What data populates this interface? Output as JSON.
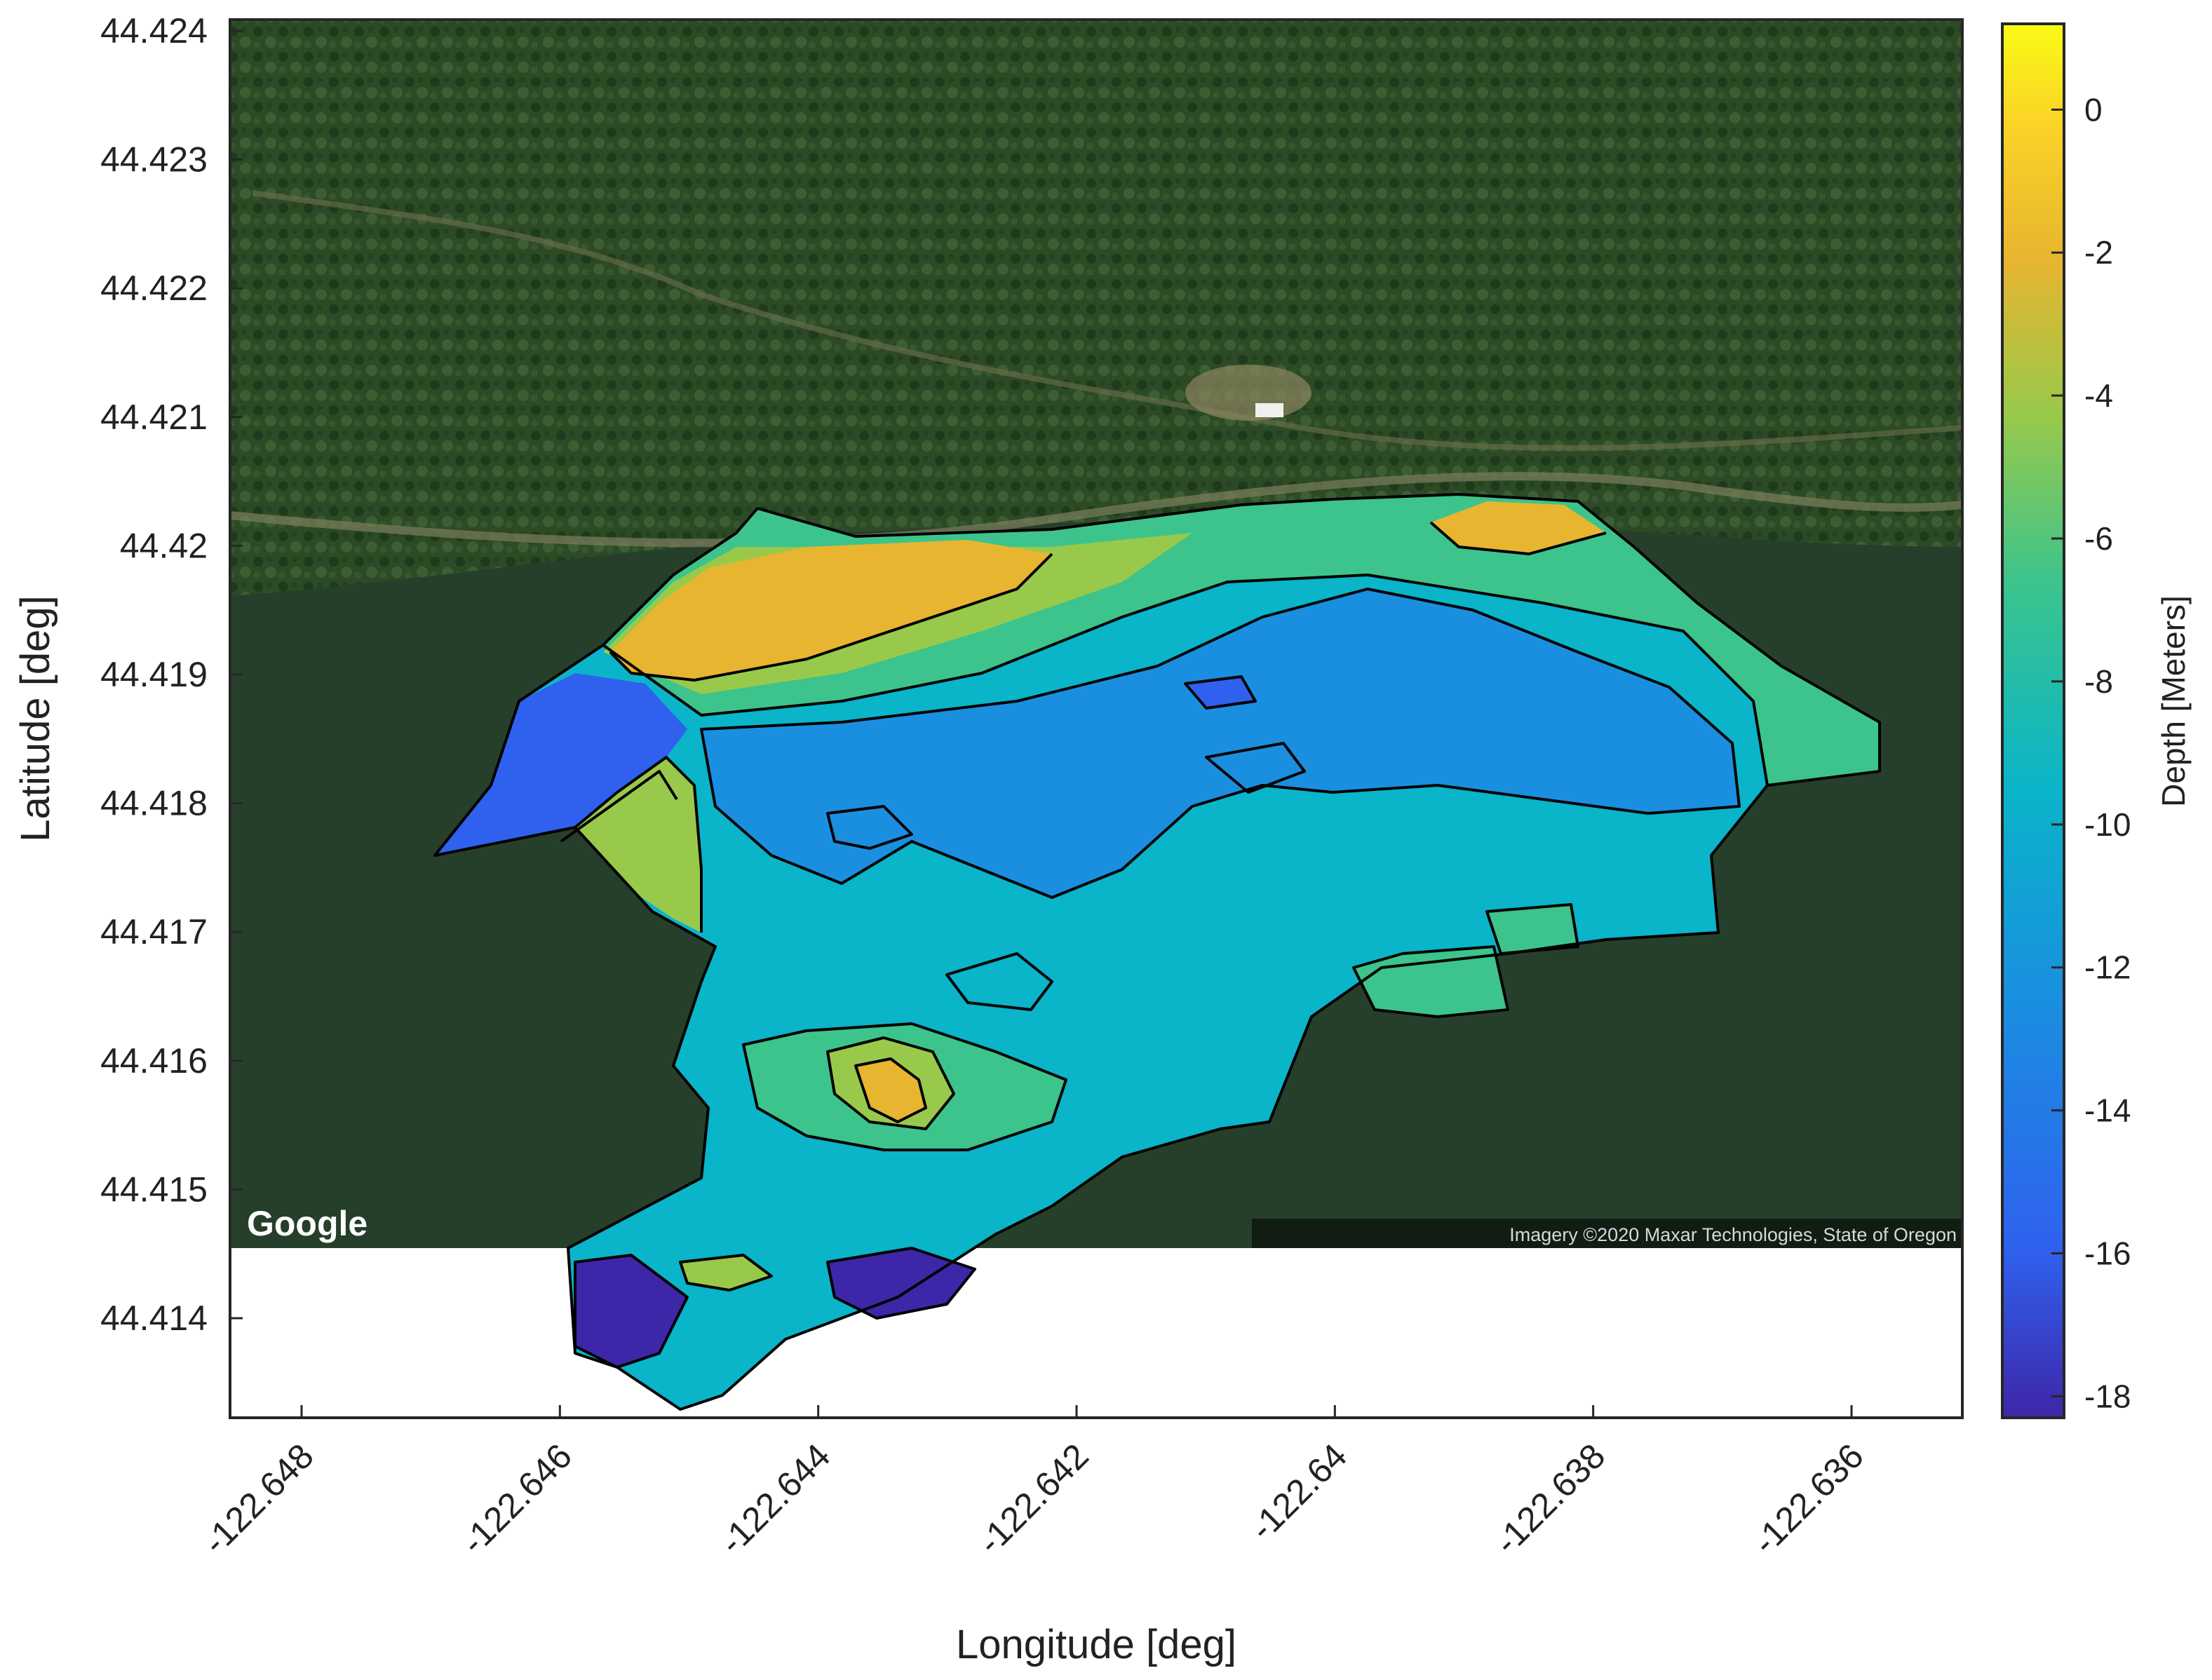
{
  "axes": {
    "x_label": "Longitude [deg]",
    "y_label": "Latitude [deg]",
    "x_ticks": [
      "-122.648",
      "-122.646",
      "-122.644",
      "-122.642",
      "-122.64",
      "-122.638",
      "-122.636"
    ],
    "y_ticks": [
      "44.424",
      "44.423",
      "44.422",
      "44.421",
      "44.42",
      "44.419",
      "44.418",
      "44.417",
      "44.416",
      "44.415",
      "44.414"
    ]
  },
  "colorbar": {
    "label": "Depth [Meters]",
    "ticks": [
      "0",
      "-2",
      "-4",
      "-6",
      "-8",
      "-10",
      "-12",
      "-14",
      "-16",
      "-18"
    ],
    "range": [
      -18.3,
      1.2
    ],
    "colors": [
      "#3e26a8",
      "#2f61ee",
      "#1a8fe0",
      "#0ab4c9",
      "#3cc48c",
      "#99c94a",
      "#e7b530",
      "#fbd427",
      "#f9fb15"
    ]
  },
  "map": {
    "provider_logo": "Google",
    "attribution": "Imagery ©2020 Maxar Technologies, State of Oregon",
    "imagery_colors": {
      "forest": "#2c4a26",
      "water": "#263f2a",
      "shore": "#6b7650"
    }
  }
}
